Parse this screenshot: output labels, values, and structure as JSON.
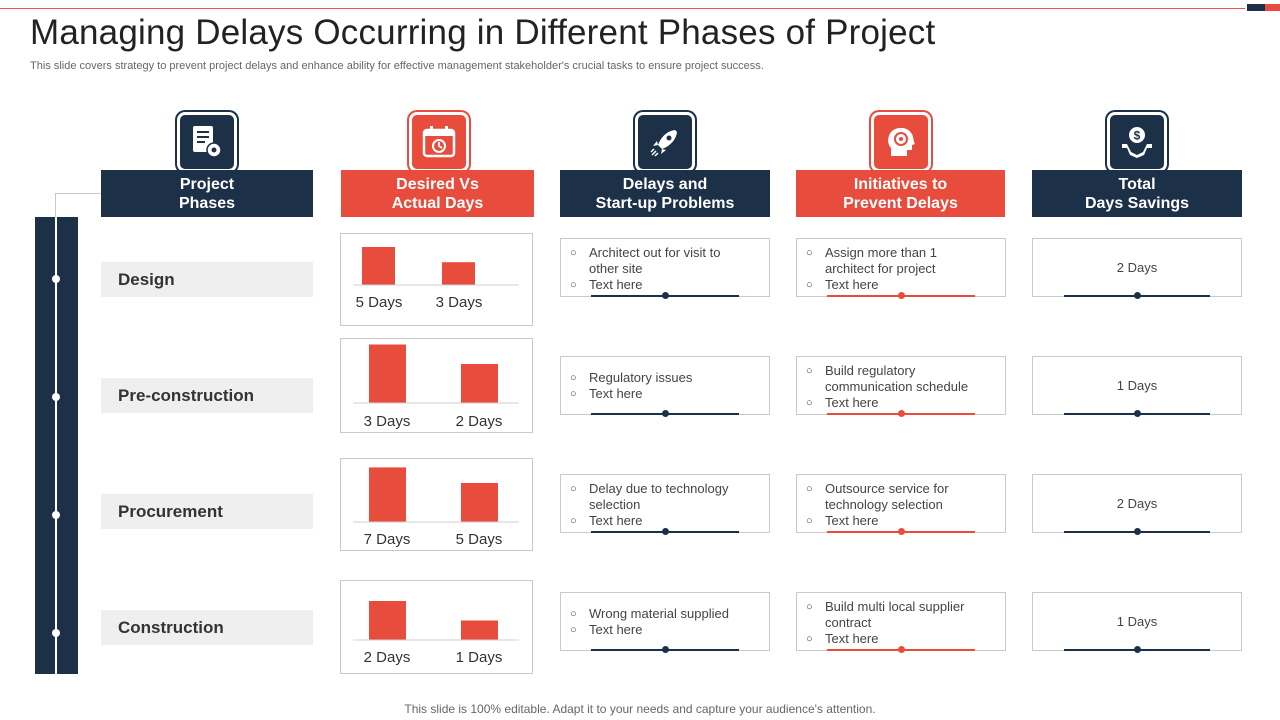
{
  "title": "Managing Delays Occurring in Different Phases of Project",
  "subtitle": "This slide covers strategy to prevent project delays and enhance ability for effective management stakeholder's crucial tasks to ensure project success.",
  "footer": "This slide is 100% editable. Adapt it to your needs and capture your audience's attention.",
  "colors": {
    "dark": "#1c3048",
    "red": "#e84c3d"
  },
  "columns": [
    {
      "label": "Project\nPhases",
      "icon": "document-gear-icon",
      "theme": "dark"
    },
    {
      "label": "Desired Vs\nActual Days",
      "icon": "calendar-clock-icon",
      "theme": "red"
    },
    {
      "label": "Delays and\nStart-up Problems",
      "icon": "rocket-icon",
      "theme": "dark"
    },
    {
      "label": "Initiatives to\nPrevent Delays",
      "icon": "head-gear-icon",
      "theme": "red"
    },
    {
      "label": "Total\nDays Savings",
      "icon": "hand-money-icon",
      "theme": "dark"
    }
  ],
  "rows": [
    {
      "phase": "Design",
      "chart": {
        "desired": 5,
        "actual": 3,
        "desired_label": "5 Days",
        "actual_label": "3 Days"
      },
      "problems": [
        "Architect out for visit to other site",
        "Text here"
      ],
      "initiatives": [
        "Assign more than 1 architect for project",
        "Text here"
      ],
      "savings": "2 Days"
    },
    {
      "phase": "Pre-construction",
      "chart": {
        "desired": 3,
        "actual": 2,
        "desired_label": "3 Days",
        "actual_label": "2 Days"
      },
      "problems": [
        "Regulatory issues",
        "Text here"
      ],
      "initiatives": [
        "Build regulatory communication schedule",
        "Text here"
      ],
      "savings": "1 Days"
    },
    {
      "phase": "Procurement",
      "chart": {
        "desired": 7,
        "actual": 5,
        "desired_label": "7 Days",
        "actual_label": "5 Days"
      },
      "problems": [
        "Delay due to technology selection",
        "Text here"
      ],
      "initiatives": [
        "Outsource service for technology selection",
        "Text here"
      ],
      "savings": "2 Days"
    },
    {
      "phase": "Construction",
      "chart": {
        "desired": 2,
        "actual": 1,
        "desired_label": "2 Days",
        "actual_label": "1 Days"
      },
      "problems": [
        "Wrong material supplied",
        "Text here"
      ],
      "initiatives": [
        "Build multi local supplier contract",
        "Text here"
      ],
      "savings": "1 Days"
    }
  ]
}
